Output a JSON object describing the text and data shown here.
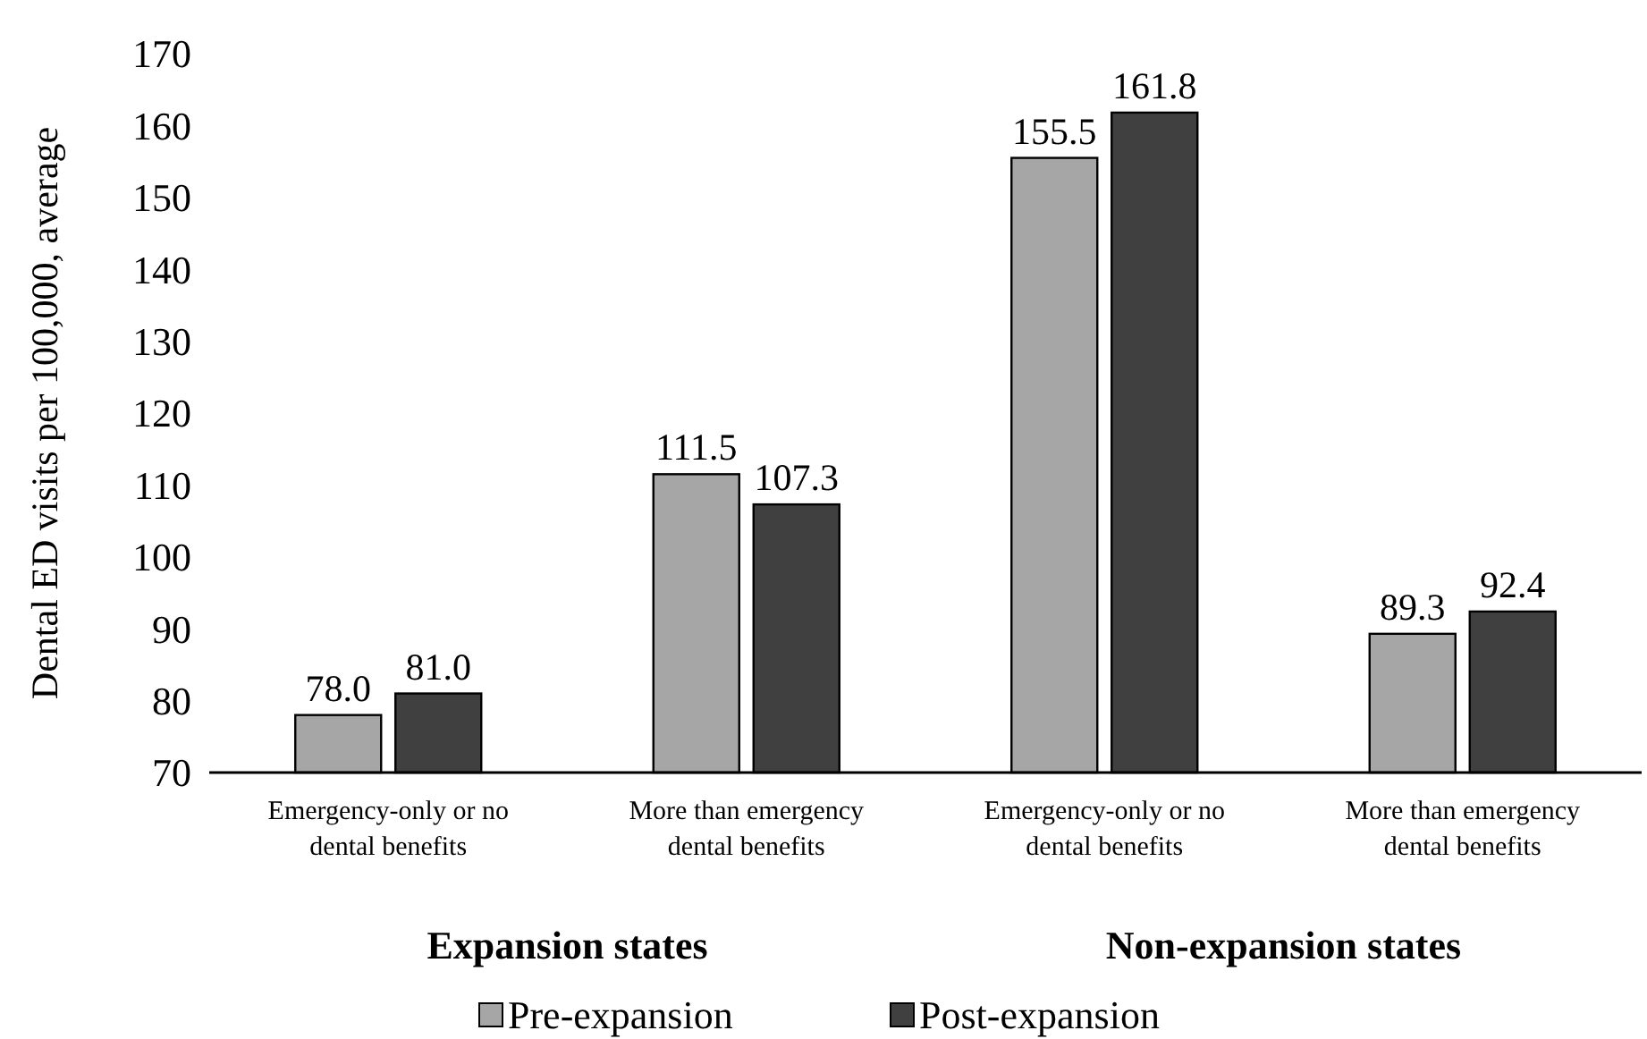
{
  "chart_data": {
    "type": "bar",
    "ylabel": "Dental ED visits per 100,000, average",
    "categories": [
      "Emergency-only or no dental benefits",
      "More than emergency dental benefits",
      "Emergency-only or no dental benefits",
      "More than emergency dental benefits"
    ],
    "series": [
      {
        "name": "Pre-expansion",
        "color": "#a6a6a6",
        "values": [
          78.0,
          111.5,
          155.5,
          89.3
        ],
        "value_labels": [
          "78.0",
          "111.5",
          "155.5",
          "89.3"
        ]
      },
      {
        "name": "Post-expansion",
        "color": "#404040",
        "values": [
          81.0,
          107.3,
          161.8,
          92.4
        ],
        "value_labels": [
          "81.0",
          "107.3",
          "161.8",
          "92.4"
        ]
      }
    ],
    "ylim": [
      70,
      170
    ],
    "yticks": [
      70,
      80,
      90,
      100,
      110,
      120,
      130,
      140,
      150,
      160,
      170
    ],
    "grid": false,
    "legend": "bottom",
    "annotations": [
      "Expansion states",
      "Non-expansion states"
    ]
  }
}
